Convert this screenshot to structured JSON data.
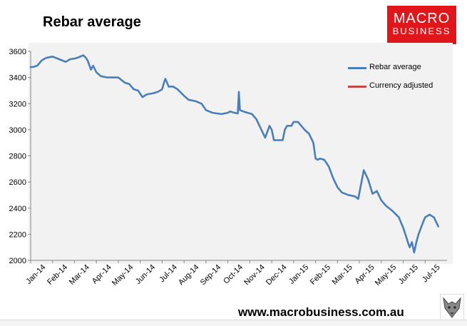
{
  "header": {
    "title": "Rebar average"
  },
  "logo": {
    "line1": "MACRO",
    "line2": "BUSINESS"
  },
  "footer": {
    "url": "www.macrobusiness.com.au"
  },
  "colors": {
    "series_primary": "#4a7ebb",
    "series_secondary": "#be4b48",
    "plot_background": "#f2f2f2",
    "logo_red": "#e0161b"
  },
  "chart_data": {
    "type": "line",
    "title": "Rebar average",
    "xlabel": "",
    "ylabel": "",
    "ylim": [
      2000,
      3600
    ],
    "yticks": [
      2000,
      2200,
      2400,
      2600,
      2800,
      3000,
      3200,
      3400,
      3600
    ],
    "x_tick_labels": [
      "Jan-14",
      "Feb-14",
      "Mar-14",
      "Apr-14",
      "May-14",
      "Jun-14",
      "Jul-14",
      "Aug-14",
      "Sep-14",
      "Oct-14",
      "Nov-14",
      "Dec-14",
      "Jan-15",
      "Feb-15",
      "Mar-15",
      "Apr-15",
      "May-15",
      "Jun-15",
      "Jul-15"
    ],
    "grid": false,
    "legend_position": "top-right",
    "series": [
      {
        "name": "Rebar average",
        "color": "#4a7ebb",
        "x": [
          0,
          0.1,
          0.3,
          0.5,
          0.7,
          1.0,
          1.3,
          1.6,
          1.8,
          2.0,
          2.2,
          2.4,
          2.5,
          2.6,
          2.75,
          2.85,
          3.0,
          3.2,
          3.5,
          4.0,
          4.3,
          4.5,
          4.7,
          4.9,
          5.1,
          5.3,
          5.6,
          5.8,
          6.0,
          6.1,
          6.15,
          6.3,
          6.5,
          6.7,
          7.0,
          7.2,
          7.5,
          7.8,
          8.0,
          8.3,
          8.7,
          9.0,
          9.1,
          9.3,
          9.45,
          9.5,
          9.55,
          9.7,
          9.9,
          10.1,
          10.3,
          10.5,
          10.7,
          10.9,
          11.0,
          11.1,
          11.3,
          11.5,
          11.6,
          11.7,
          11.9,
          12.0,
          12.2,
          12.5,
          12.7,
          12.9,
          13.0,
          13.1,
          13.2,
          13.4,
          13.6,
          13.8,
          14.0,
          14.2,
          14.5,
          14.8,
          14.95,
          15.05,
          15.2,
          15.4,
          15.6,
          15.8,
          16.0,
          16.2,
          16.5,
          16.8,
          17.0,
          17.1,
          17.25,
          17.3,
          17.4,
          17.5,
          17.6,
          17.7,
          17.9,
          18.0,
          18.2,
          18.4,
          18.6
        ],
        "values": [
          3480,
          3480,
          3490,
          3530,
          3550,
          3560,
          3540,
          3520,
          3540,
          3545,
          3555,
          3570,
          3555,
          3530,
          3460,
          3490,
          3440,
          3410,
          3400,
          3400,
          3360,
          3350,
          3310,
          3300,
          3250,
          3270,
          3280,
          3290,
          3310,
          3370,
          3390,
          3330,
          3330,
          3310,
          3260,
          3230,
          3220,
          3200,
          3150,
          3130,
          3120,
          3130,
          3140,
          3130,
          3125,
          3290,
          3150,
          3140,
          3130,
          3120,
          3080,
          3010,
          2940,
          3030,
          3000,
          2920,
          2920,
          2920,
          3000,
          3030,
          3030,
          3060,
          3060,
          3000,
          2970,
          2900,
          2780,
          2770,
          2780,
          2770,
          2720,
          2630,
          2560,
          2520,
          2500,
          2490,
          2470,
          2560,
          2690,
          2620,
          2510,
          2530,
          2460,
          2420,
          2380,
          2330,
          2250,
          2200,
          2120,
          2100,
          2140,
          2060,
          2140,
          2200,
          2290,
          2330,
          2350,
          2330,
          2260
        ],
        "x_units": "months since Jan-14"
      },
      {
        "name": "Currency adjusted",
        "color": "#be4b48",
        "values": []
      }
    ]
  }
}
